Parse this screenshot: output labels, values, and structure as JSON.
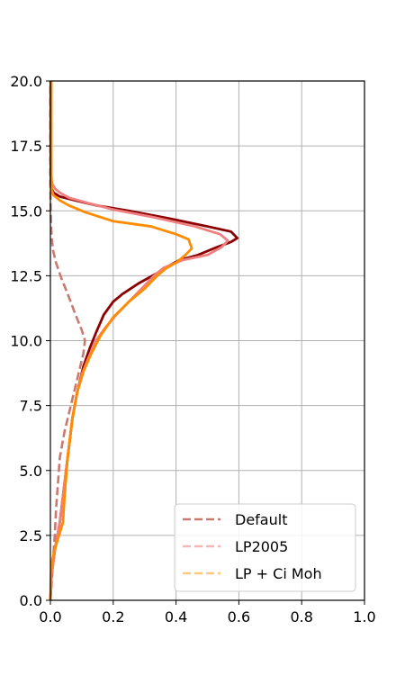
{
  "chart_data": {
    "type": "line",
    "title": "",
    "xlabel": "",
    "ylabel": "",
    "xlim": [
      0.0,
      1.0
    ],
    "ylim": [
      0.0,
      20.0
    ],
    "grid": true,
    "legend_placement": "lower-right",
    "xticks": [
      0.0,
      0.2,
      0.4,
      0.6,
      0.8,
      1.0
    ],
    "xtick_labels": [
      "0.0",
      "0.2",
      "0.4",
      "0.6",
      "0.8",
      "1.0"
    ],
    "yticks": [
      0.0,
      2.5,
      5.0,
      7.5,
      10.0,
      12.5,
      15.0,
      17.5,
      20.0
    ],
    "ytick_labels": [
      "0.0",
      "2.5",
      "5.0",
      "7.5",
      "10.0",
      "12.5",
      "15.0",
      "17.5",
      "20.0"
    ],
    "series": [
      {
        "name": "Default",
        "style": "dashed",
        "color": "#c97a6e",
        "points": [
          [
            0.0,
            0.0
          ],
          [
            0.003,
            0.5
          ],
          [
            0.008,
            1.5
          ],
          [
            0.014,
            2.5
          ],
          [
            0.018,
            3.5
          ],
          [
            0.024,
            4.5
          ],
          [
            0.03,
            5.5
          ],
          [
            0.045,
            6.5
          ],
          [
            0.065,
            7.5
          ],
          [
            0.085,
            8.5
          ],
          [
            0.105,
            9.5
          ],
          [
            0.11,
            10.0
          ],
          [
            0.1,
            10.4
          ],
          [
            0.08,
            11.0
          ],
          [
            0.055,
            11.8
          ],
          [
            0.035,
            12.4
          ],
          [
            0.018,
            13.0
          ],
          [
            0.008,
            13.5
          ],
          [
            0.004,
            14.0
          ],
          [
            0.002,
            14.5
          ],
          [
            0.001,
            15.0
          ],
          [
            0.0,
            16.0
          ],
          [
            0.0,
            20.0
          ]
        ]
      },
      {
        "name": "LP2005",
        "style": "dashed",
        "color": "#f4b6b6",
        "points": []
      },
      {
        "name": "LP + Ci Moh",
        "style": "dashed",
        "color": "#fbc97f",
        "points": []
      },
      {
        "name": "",
        "style": "solid",
        "color": "#8b0000",
        "points": [
          [
            0.0,
            0.0
          ],
          [
            0.004,
            1.0
          ],
          [
            0.015,
            2.0
          ],
          [
            0.03,
            3.0
          ],
          [
            0.04,
            4.0
          ],
          [
            0.055,
            5.5
          ],
          [
            0.07,
            7.0
          ],
          [
            0.085,
            8.0
          ],
          [
            0.105,
            9.0
          ],
          [
            0.125,
            9.7
          ],
          [
            0.145,
            10.3
          ],
          [
            0.17,
            11.0
          ],
          [
            0.2,
            11.5
          ],
          [
            0.23,
            11.8
          ],
          [
            0.28,
            12.2
          ],
          [
            0.34,
            12.6
          ],
          [
            0.38,
            12.9
          ],
          [
            0.41,
            13.1
          ],
          [
            0.47,
            13.3
          ],
          [
            0.53,
            13.6
          ],
          [
            0.575,
            13.8
          ],
          [
            0.595,
            13.95
          ],
          [
            0.575,
            14.2
          ],
          [
            0.5,
            14.4
          ],
          [
            0.38,
            14.7
          ],
          [
            0.25,
            15.0
          ],
          [
            0.15,
            15.2
          ],
          [
            0.08,
            15.4
          ],
          [
            0.03,
            15.55
          ],
          [
            0.01,
            15.7
          ],
          [
            0.004,
            15.85
          ],
          [
            0.002,
            16.0
          ],
          [
            0.001,
            17.0
          ],
          [
            0.001,
            20.0
          ]
        ]
      },
      {
        "name": "",
        "style": "solid",
        "color": "#f08080",
        "points": [
          [
            0.0,
            0.0
          ],
          [
            0.004,
            1.0
          ],
          [
            0.015,
            2.0
          ],
          [
            0.03,
            3.0
          ],
          [
            0.04,
            4.0
          ],
          [
            0.055,
            5.5
          ],
          [
            0.07,
            7.0
          ],
          [
            0.085,
            8.0
          ],
          [
            0.1,
            8.7
          ],
          [
            0.12,
            9.3
          ],
          [
            0.145,
            10.0
          ],
          [
            0.175,
            10.5
          ],
          [
            0.21,
            11.0
          ],
          [
            0.25,
            11.5
          ],
          [
            0.29,
            12.0
          ],
          [
            0.33,
            12.5
          ],
          [
            0.36,
            12.8
          ],
          [
            0.42,
            13.1
          ],
          [
            0.5,
            13.3
          ],
          [
            0.545,
            13.6
          ],
          [
            0.565,
            13.85
          ],
          [
            0.54,
            14.1
          ],
          [
            0.46,
            14.4
          ],
          [
            0.33,
            14.75
          ],
          [
            0.2,
            15.05
          ],
          [
            0.12,
            15.3
          ],
          [
            0.06,
            15.5
          ],
          [
            0.03,
            15.7
          ],
          [
            0.015,
            15.85
          ],
          [
            0.005,
            16.05
          ],
          [
            0.003,
            16.3
          ],
          [
            0.002,
            17.0
          ],
          [
            0.002,
            20.0
          ]
        ]
      },
      {
        "name": "",
        "style": "solid",
        "color": "#ff8c00",
        "points": [
          [
            0.0,
            0.0
          ],
          [
            0.002,
            1.0
          ],
          [
            0.005,
            1.5
          ],
          [
            0.015,
            2.0
          ],
          [
            0.03,
            2.6
          ],
          [
            0.04,
            3.0
          ],
          [
            0.045,
            4.0
          ],
          [
            0.055,
            5.5
          ],
          [
            0.07,
            7.0
          ],
          [
            0.085,
            8.0
          ],
          [
            0.105,
            8.8
          ],
          [
            0.13,
            9.5
          ],
          [
            0.16,
            10.2
          ],
          [
            0.2,
            10.9
          ],
          [
            0.25,
            11.5
          ],
          [
            0.3,
            12.0
          ],
          [
            0.34,
            12.5
          ],
          [
            0.37,
            12.8
          ],
          [
            0.4,
            13.0
          ],
          [
            0.43,
            13.3
          ],
          [
            0.45,
            13.55
          ],
          [
            0.44,
            13.9
          ],
          [
            0.4,
            14.1
          ],
          [
            0.32,
            14.4
          ],
          [
            0.2,
            14.6
          ],
          [
            0.11,
            14.95
          ],
          [
            0.06,
            15.2
          ],
          [
            0.03,
            15.4
          ],
          [
            0.01,
            15.6
          ],
          [
            0.004,
            15.8
          ],
          [
            0.003,
            16.5
          ],
          [
            0.003,
            20.0
          ]
        ]
      }
    ]
  }
}
